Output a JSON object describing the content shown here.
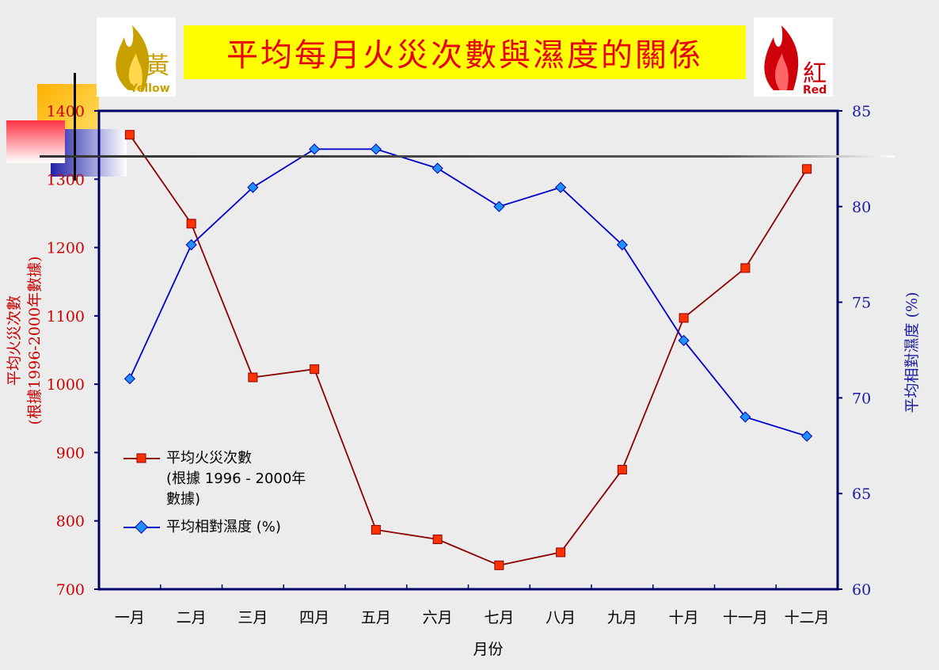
{
  "title": "平均每月火災次數與濕度的關係",
  "logos": {
    "yellow": {
      "char": "黃",
      "word": "Yellow",
      "color": "#c8a000"
    },
    "red": {
      "char": "紅",
      "word": "Red",
      "color": "#d0000a"
    }
  },
  "colors": {
    "fire_series": "#8b0000",
    "fire_marker": "#ff3300",
    "humidity_series": "#0000cc",
    "humidity_marker": "#1e90ff",
    "axis_frame": "#000066",
    "left_axis_text": "#cc0000",
    "right_axis_text": "#1a1aa0"
  },
  "legend": {
    "fire_label": "平均火災次數\n(根據 1996 - 2000年\n數據)",
    "humidity_label": "平均相對濕度 (%)"
  },
  "chart_data": {
    "type": "line",
    "categories": [
      "一月",
      "二月",
      "三月",
      "四月",
      "五月",
      "六月",
      "七月",
      "八月",
      "九月",
      "十月",
      "十一月",
      "十二月"
    ],
    "xlabel": "月份",
    "series": [
      {
        "name": "平均火災次數 (根據 1996 - 2000年數據)",
        "axis": "left",
        "values": [
          1365,
          1235,
          1010,
          1022,
          787,
          773,
          735,
          754,
          875,
          1097,
          1170,
          1315
        ]
      },
      {
        "name": "平均相對濕度 (%)",
        "axis": "right",
        "values": [
          71,
          78,
          81,
          83,
          83,
          82,
          80,
          81,
          78,
          73,
          69,
          68
        ]
      }
    ],
    "y_left": {
      "label": "平均火災次數\n(根據1996-2000年數據)",
      "ylim": [
        700,
        1400
      ],
      "ticks": [
        "700",
        "800",
        "900",
        "1000",
        "1100",
        "1200",
        "1300",
        "1400"
      ]
    },
    "y_right": {
      "label": "平均相對濕度 (%)",
      "ylim": [
        60,
        85
      ],
      "ticks": [
        "60",
        "65",
        "70",
        "75",
        "80",
        "85"
      ]
    },
    "grid": false,
    "legend_position": "bottom-left"
  }
}
